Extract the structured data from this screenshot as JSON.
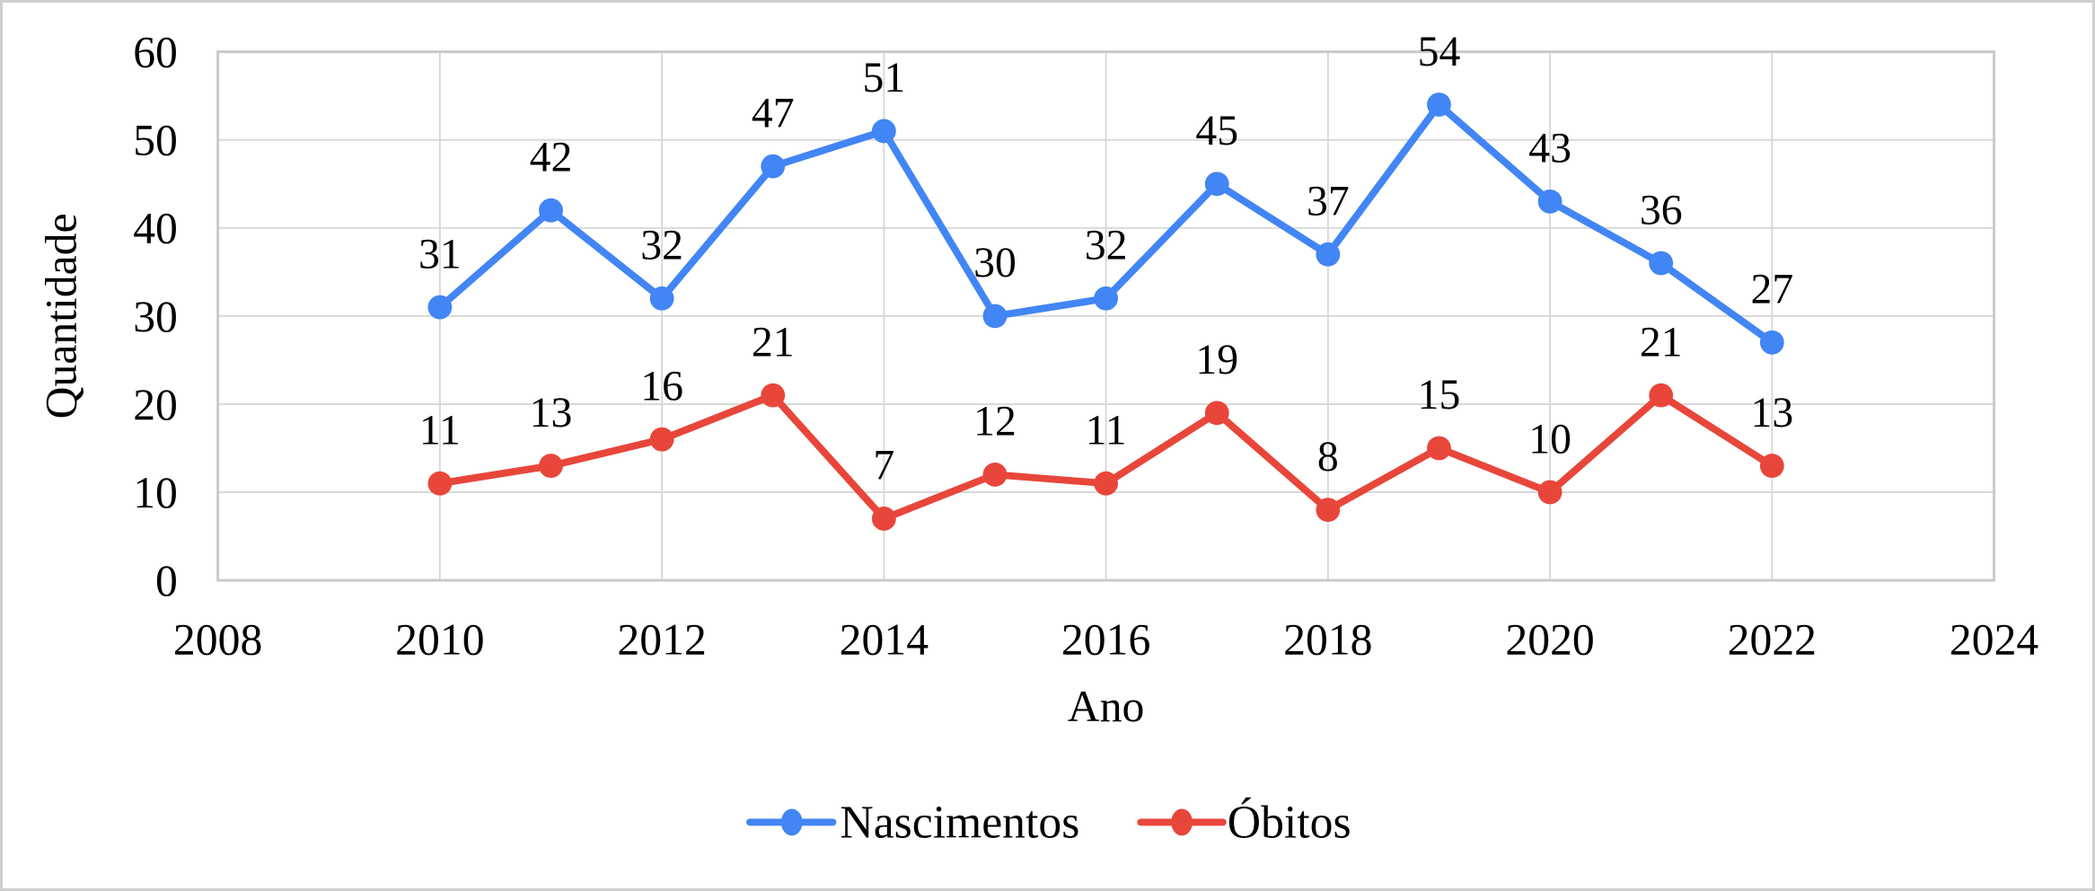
{
  "chart_data": {
    "type": "line",
    "x": [
      2010,
      2011,
      2012,
      2013,
      2014,
      2015,
      2016,
      2017,
      2018,
      2019,
      2020,
      2021,
      2022
    ],
    "series": [
      {
        "name": "Nascimentos",
        "color": "#4285F4",
        "values": [
          31,
          42,
          32,
          47,
          51,
          30,
          32,
          45,
          37,
          54,
          43,
          36,
          27
        ]
      },
      {
        "name": "Óbitos",
        "color": "#E8463A",
        "values": [
          11,
          13,
          16,
          21,
          7,
          12,
          11,
          19,
          8,
          15,
          10,
          21,
          13
        ]
      }
    ],
    "title": "",
    "xlabel": "Ano",
    "ylabel": "Quantidade",
    "xlim": [
      2008,
      2024
    ],
    "ylim": [
      0,
      60
    ],
    "x_ticks": [
      2008,
      2010,
      2012,
      2014,
      2016,
      2018,
      2020,
      2022,
      2024
    ],
    "y_ticks": [
      0,
      10,
      20,
      30,
      40,
      50,
      60
    ],
    "grid": true,
    "data_labels": true,
    "legend_position": "bottom-center",
    "marker": "circle"
  },
  "colors": {
    "gridline": "#D9D9D9",
    "frame": "#C9C9C9",
    "text": "#000000",
    "background": "#FFFFFF",
    "page_border": "#CFCFCF"
  }
}
